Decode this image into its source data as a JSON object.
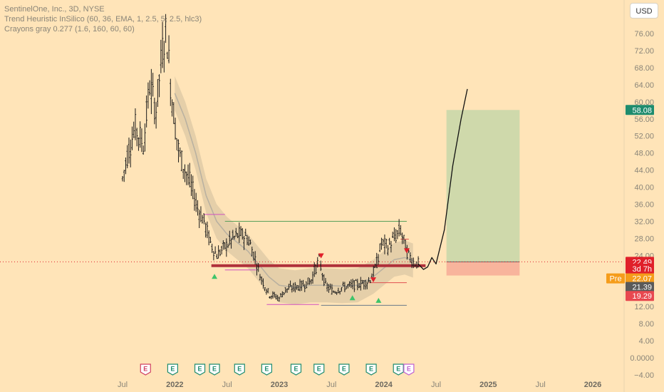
{
  "header": {
    "title": "SentinelOne, Inc., 3D, NYSE",
    "indicator_1": "Trend Heuristic InSilico (60, 36, EMA, 1, 2.5, 5, 2.5, hlc3)",
    "indicator_2": "Crayons gray 0.277 (1.6, 160, 60, 60)"
  },
  "currency": "USD",
  "chart_data": {
    "type": "candlestick",
    "y_axis": {
      "range": [
        -4,
        80
      ],
      "ticks": [
        "76.00",
        "72.00",
        "68.00",
        "64.00",
        "60.00",
        "56.00",
        "52.00",
        "48.00",
        "44.00",
        "40.00",
        "36.00",
        "32.00",
        "28.00",
        "24.00",
        "20.00",
        "16.00",
        "12.00",
        "8.00",
        "4.00",
        "0.0000",
        "−4.00"
      ]
    },
    "x_axis": {
      "labels": [
        {
          "text": "Jul",
          "t": 2021.5,
          "bold": false
        },
        {
          "text": "2022",
          "t": 2022.0,
          "bold": true
        },
        {
          "text": "Jul",
          "t": 2022.5,
          "bold": false
        },
        {
          "text": "2023",
          "t": 2023.0,
          "bold": true
        },
        {
          "text": "Jul",
          "t": 2023.5,
          "bold": false
        },
        {
          "text": "2024",
          "t": 2024.0,
          "bold": true
        },
        {
          "text": "Jul",
          "t": 2024.5,
          "bold": false
        },
        {
          "text": "2025",
          "t": 2025.0,
          "bold": true
        },
        {
          "text": "Jul",
          "t": 2025.5,
          "bold": false
        },
        {
          "text": "2026",
          "t": 2026.0,
          "bold": true
        }
      ]
    },
    "price_path": [
      [
        2021.5,
        42
      ],
      [
        2021.55,
        48
      ],
      [
        2021.62,
        54
      ],
      [
        2021.7,
        50
      ],
      [
        2021.76,
        64
      ],
      [
        2021.82,
        58
      ],
      [
        2021.88,
        72
      ],
      [
        2021.92,
        77
      ],
      [
        2021.96,
        64
      ],
      [
        2022.0,
        55
      ],
      [
        2022.04,
        48
      ],
      [
        2022.1,
        44
      ],
      [
        2022.16,
        40
      ],
      [
        2022.22,
        35
      ],
      [
        2022.28,
        32
      ],
      [
        2022.34,
        27
      ],
      [
        2022.4,
        24
      ],
      [
        2022.48,
        26
      ],
      [
        2022.56,
        28
      ],
      [
        2022.62,
        29
      ],
      [
        2022.7,
        28
      ],
      [
        2022.76,
        24
      ],
      [
        2022.82,
        19
      ],
      [
        2022.9,
        15
      ],
      [
        2023.0,
        14
      ],
      [
        2023.06,
        16
      ],
      [
        2023.14,
        16.5
      ],
      [
        2023.22,
        17
      ],
      [
        2023.3,
        18
      ],
      [
        2023.38,
        23
      ],
      [
        2023.44,
        17
      ],
      [
        2023.52,
        15.5
      ],
      [
        2023.6,
        16.5
      ],
      [
        2023.7,
        17
      ],
      [
        2023.8,
        17.5
      ],
      [
        2023.86,
        18
      ],
      [
        2023.92,
        21
      ],
      [
        2023.98,
        27
      ],
      [
        2024.04,
        26
      ],
      [
        2024.1,
        28
      ],
      [
        2024.16,
        30
      ],
      [
        2024.22,
        25
      ],
      [
        2024.28,
        22.5
      ],
      [
        2024.33,
        22
      ]
    ],
    "projection_path": [
      [
        2024.33,
        22.0
      ],
      [
        2024.38,
        20.7
      ],
      [
        2024.42,
        21.3
      ],
      [
        2024.46,
        23.5
      ],
      [
        2024.5,
        22.0
      ],
      [
        2024.58,
        30
      ],
      [
        2024.66,
        45
      ],
      [
        2024.74,
        56
      ],
      [
        2024.8,
        63
      ]
    ],
    "moving_average": [
      [
        2022.0,
        62
      ],
      [
        2022.1,
        56
      ],
      [
        2022.2,
        48
      ],
      [
        2022.3,
        38
      ],
      [
        2022.4,
        32
      ],
      [
        2022.5,
        29
      ],
      [
        2022.6,
        27
      ],
      [
        2022.7,
        25
      ],
      [
        2022.8,
        22
      ],
      [
        2022.9,
        19
      ],
      [
        2023.0,
        17
      ],
      [
        2023.15,
        16.5
      ],
      [
        2023.3,
        17
      ],
      [
        2023.45,
        17
      ],
      [
        2023.6,
        16.8
      ],
      [
        2023.75,
        17
      ],
      [
        2023.9,
        19
      ],
      [
        2024.0,
        21
      ],
      [
        2024.1,
        23
      ],
      [
        2024.2,
        23.5
      ],
      [
        2024.28,
        22.8
      ]
    ],
    "horizontal_levels": [
      {
        "name": "resistance-level-green",
        "price": 32.0,
        "from": 2022.48,
        "to": 2024.22,
        "color": "#5aa05a"
      },
      {
        "name": "support-level-main",
        "price": 21.6,
        "from": 2022.35,
        "to": 2024.4,
        "color": "#b0303a"
      },
      {
        "name": "support-level-bottom",
        "price": 12.3,
        "from": 2023.4,
        "to": 2024.22,
        "color": "#6a7a8a"
      },
      {
        "name": "magenta-level-low",
        "price": 20.6,
        "from": 2022.48,
        "to": 2022.78,
        "color": "#d050c0"
      },
      {
        "name": "magenta-level-mid",
        "price": 33.6,
        "from": 2022.28,
        "to": 2022.48,
        "color": "#d050c0"
      },
      {
        "name": "magenta-level-bottom",
        "price": 12.5,
        "from": 2022.88,
        "to": 2023.38,
        "color": "#d050c0"
      },
      {
        "name": "red-level-thin",
        "price": 17.6,
        "from": 2023.86,
        "to": 2024.22,
        "color": "#e05050"
      },
      {
        "name": "red-level-thin-upper",
        "price": 27.8,
        "from": 2024.16,
        "to": 2024.24,
        "color": "#e05050"
      }
    ],
    "position": {
      "entry": 22.49,
      "target": 58.08,
      "stop": 19.29,
      "from": 2024.6,
      "to": 2025.3
    },
    "price_tags": [
      {
        "name": "target-price-tag",
        "text": "58.08",
        "price": 58.08,
        "bg": "#1e8c6e",
        "fg": "#ffffff"
      },
      {
        "name": "last-price-tag",
        "text": "22.49",
        "price": 22.49,
        "bg": "#e0202a",
        "fg": "#ffffff"
      },
      {
        "name": "countdown-tag",
        "text": "3d 7h",
        "price": 20.9,
        "bg": "#e0202a",
        "fg": "#ffffff"
      },
      {
        "name": "premarket-price-tag",
        "text": "22.07",
        "price": 18.6,
        "bg": "#f59c1a",
        "fg": "#ffffff"
      },
      {
        "name": "current-price-tag",
        "text": "21.39",
        "price": 16.6,
        "bg": "#5a5a5a",
        "fg": "#ffffff"
      },
      {
        "name": "stop-price-tag",
        "text": "19.29",
        "price": 14.5,
        "bg": "#e8484f",
        "fg": "#ffffff"
      }
    ],
    "premarket_label": "Pre",
    "signals": [
      {
        "type": "sell",
        "t": 2023.4,
        "price": 23.8
      },
      {
        "type": "sell",
        "t": 2023.9,
        "price": 18.2
      },
      {
        "type": "sell",
        "t": 2024.22,
        "price": 25.0
      },
      {
        "type": "buy",
        "t": 2023.7,
        "price": 14.0
      },
      {
        "type": "buy",
        "t": 2023.95,
        "price": 13.4
      },
      {
        "type": "buy",
        "t": 2022.38,
        "price": 19.0
      }
    ],
    "earnings_markers": [
      {
        "t": 2021.72,
        "label": "E",
        "style": "red"
      },
      {
        "t": 2021.98,
        "label": "E",
        "style": "green"
      },
      {
        "t": 2022.24,
        "label": "E",
        "style": "green"
      },
      {
        "t": 2022.38,
        "label": "E",
        "style": "green"
      },
      {
        "t": 2022.62,
        "label": "E",
        "style": "green"
      },
      {
        "t": 2022.88,
        "label": "E",
        "style": "green"
      },
      {
        "t": 2023.16,
        "label": "E",
        "style": "green"
      },
      {
        "t": 2023.38,
        "label": "E",
        "style": "green"
      },
      {
        "t": 2023.62,
        "label": "E",
        "style": "green"
      },
      {
        "t": 2023.88,
        "label": "E",
        "style": "green"
      },
      {
        "t": 2024.14,
        "label": "E",
        "style": "green"
      },
      {
        "t": 2024.24,
        "label": "E",
        "style": "purple"
      }
    ]
  }
}
